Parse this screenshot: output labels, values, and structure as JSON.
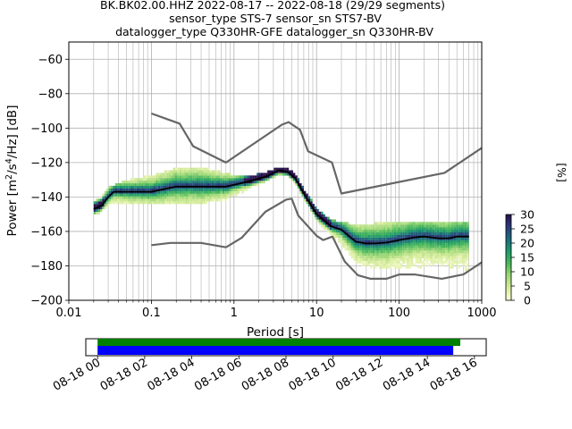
{
  "chart_data": {
    "type": "heatmap",
    "title_lines": [
      "BK.BK02.00.HHZ   2022-08-17 -- 2022-08-18  (29/29 segments)",
      "sensor_type STS-7 sensor_sn STS7-BV",
      "datalogger_type Q330HR-GFE datalogger_sn Q330HR-BV"
    ],
    "xlabel": "Period [s]",
    "ylabel": "Power [m²/s⁴/Hz] [dB]",
    "ylabel_parts": {
      "prefix": "Power [m",
      "sup1": "2",
      "mid": "/s",
      "sup2": "4",
      "suffix": "/Hz] [dB]"
    },
    "x_scale": "log",
    "xlim": [
      0.01,
      1000
    ],
    "ylim": [
      -200,
      -50
    ],
    "x_ticks": [
      {
        "value": 0.01,
        "label": "0.01"
      },
      {
        "value": 0.1,
        "label": "0.1"
      },
      {
        "value": 1,
        "label": "1"
      },
      {
        "value": 10,
        "label": "10"
      },
      {
        "value": 100,
        "label": "100"
      },
      {
        "value": 1000,
        "label": "1000"
      }
    ],
    "y_ticks": [
      {
        "value": -60,
        "label": "−60"
      },
      {
        "value": -80,
        "label": "−80"
      },
      {
        "value": -100,
        "label": "−100"
      },
      {
        "value": -120,
        "label": "−120"
      },
      {
        "value": -140,
        "label": "−140"
      },
      {
        "value": -160,
        "label": "−160"
      },
      {
        "value": -180,
        "label": "−180"
      },
      {
        "value": -200,
        "label": "−200"
      }
    ],
    "grid": true,
    "noise_model_high": {
      "name": "",
      "color": "#666666",
      "x": [
        0.1,
        0.22,
        0.32,
        0.8,
        3.8,
        4.6,
        6.3,
        7.9,
        15.4,
        20,
        354.8,
        1000
      ],
      "y": [
        -91.5,
        -97.4,
        -110.5,
        -120,
        -98,
        -96.5,
        -101,
        -113.5,
        -120,
        -138,
        -126,
        -111.5
      ]
    },
    "noise_model_low": {
      "name": "",
      "color": "#666666",
      "x": [
        0.1,
        0.17,
        0.4,
        0.8,
        1.24,
        2.4,
        4.3,
        5,
        6,
        10,
        12,
        15.6,
        21.9,
        31.6,
        45,
        70,
        101,
        154,
        328,
        600,
        1000
      ],
      "y": [
        -168,
        -166.7,
        -166.7,
        -169.2,
        -163.7,
        -148.6,
        -141.5,
        -141,
        -150.8,
        -162.5,
        -165,
        -163,
        -177.5,
        -185.4,
        -187.5,
        -187.5,
        -185,
        -185,
        -187.5,
        -185,
        -178
      ]
    },
    "mode_curve": {
      "name": "",
      "color": "#000000",
      "x": [
        0.02,
        0.025,
        0.03,
        0.035,
        0.05,
        0.1,
        0.2,
        0.4,
        0.8,
        1.5,
        2.5,
        3.5,
        4.5,
        5.5,
        7,
        10,
        15,
        20,
        25,
        30,
        40,
        50,
        70,
        100,
        150,
        200,
        300,
        400,
        500,
        700
      ],
      "y": [
        -147,
        -145,
        -140,
        -137,
        -137,
        -137,
        -134,
        -134,
        -134,
        -131,
        -128,
        -124.5,
        -125.5,
        -129,
        -138,
        -150,
        -157,
        -159,
        -163,
        -166,
        -167,
        -167,
        -166.5,
        -165,
        -163.5,
        -163,
        -164,
        -164,
        -163,
        -163
      ]
    },
    "ppsd_spread": {
      "x": [
        0.02,
        0.025,
        0.03,
        0.05,
        0.1,
        0.2,
        0.4,
        0.8,
        1.5,
        2.5,
        3.5,
        4.5,
        5.5,
        7,
        10,
        15,
        20,
        30,
        50,
        100,
        200,
        400,
        700
      ],
      "upper": [
        -143,
        -141,
        -135,
        -131,
        -128,
        -124,
        -123,
        -127,
        -129,
        -126,
        -123.5,
        -124.5,
        -127,
        -136,
        -147,
        -154,
        -155,
        -157,
        -156,
        -155,
        -155,
        -155,
        -155
      ],
      "lower": [
        -150,
        -148,
        -144,
        -143,
        -143,
        -144,
        -143,
        -141,
        -135,
        -130,
        -126.5,
        -127.5,
        -131,
        -140,
        -153,
        -162,
        -168,
        -178,
        -181,
        -181,
        -180,
        -180,
        -182
      ]
    },
    "colorbar": {
      "label": "[%]",
      "range": [
        0,
        30
      ],
      "ticks": [
        {
          "value": 0,
          "label": "0"
        },
        {
          "value": 5,
          "label": "5"
        },
        {
          "value": 10,
          "label": "10"
        },
        {
          "value": 15,
          "label": "15"
        },
        {
          "value": 20,
          "label": "20"
        },
        {
          "value": 25,
          "label": "25"
        },
        {
          "value": 30,
          "label": "30"
        }
      ],
      "colors": [
        "#ffffd9",
        "#d6ec9c",
        "#9ed878",
        "#4cb85c",
        "#1e9a6c",
        "#1f6b7c",
        "#2a3b7a",
        "#28104a"
      ]
    },
    "timeline": {
      "ticks": [
        "08-18 00",
        "08-18 02",
        "08-18 04",
        "08-18 06",
        "08-18 08",
        "08-18 10",
        "08-18 12",
        "08-18 14",
        "08-18 16"
      ],
      "range_hours": [
        -0.5,
        16.5
      ],
      "data_bar": {
        "start": 0,
        "end": 15.4,
        "color": "#008000"
      },
      "used_bar": {
        "start": 0,
        "end": 15.1,
        "color": "#0000ff"
      }
    }
  }
}
